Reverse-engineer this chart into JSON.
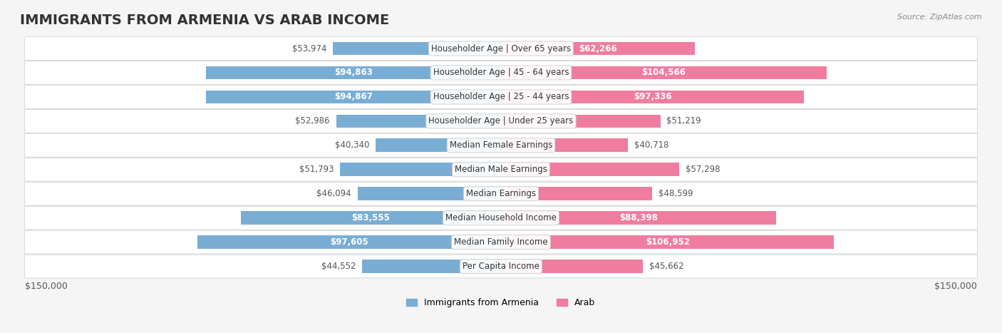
{
  "title": "IMMIGRANTS FROM ARMENIA VS ARAB INCOME",
  "source": "Source: ZipAtlas.com",
  "categories": [
    "Per Capita Income",
    "Median Family Income",
    "Median Household Income",
    "Median Earnings",
    "Median Male Earnings",
    "Median Female Earnings",
    "Householder Age | Under 25 years",
    "Householder Age | 25 - 44 years",
    "Householder Age | 45 - 64 years",
    "Householder Age | Over 65 years"
  ],
  "armenia_values": [
    44552,
    97605,
    83555,
    46094,
    51793,
    40340,
    52986,
    94867,
    94863,
    53974
  ],
  "arab_values": [
    45662,
    106952,
    88398,
    48599,
    57298,
    40718,
    51219,
    97336,
    104566,
    62266
  ],
  "armenia_color": "#7aadd4",
  "arab_color": "#f07ca0",
  "armenia_label": "Immigrants from Armenia",
  "arab_label": "Arab",
  "x_max": 150000,
  "xlabel_left": "$150,000",
  "xlabel_right": "$150,000",
  "bar_height": 0.55,
  "background_color": "#f5f5f5",
  "row_bg_color": "#ffffff",
  "label_color_inside": "#ffffff",
  "label_color_outside": "#555555",
  "title_color": "#333333",
  "label_fontsize": 8.5,
  "category_fontsize": 8.5,
  "title_fontsize": 14
}
